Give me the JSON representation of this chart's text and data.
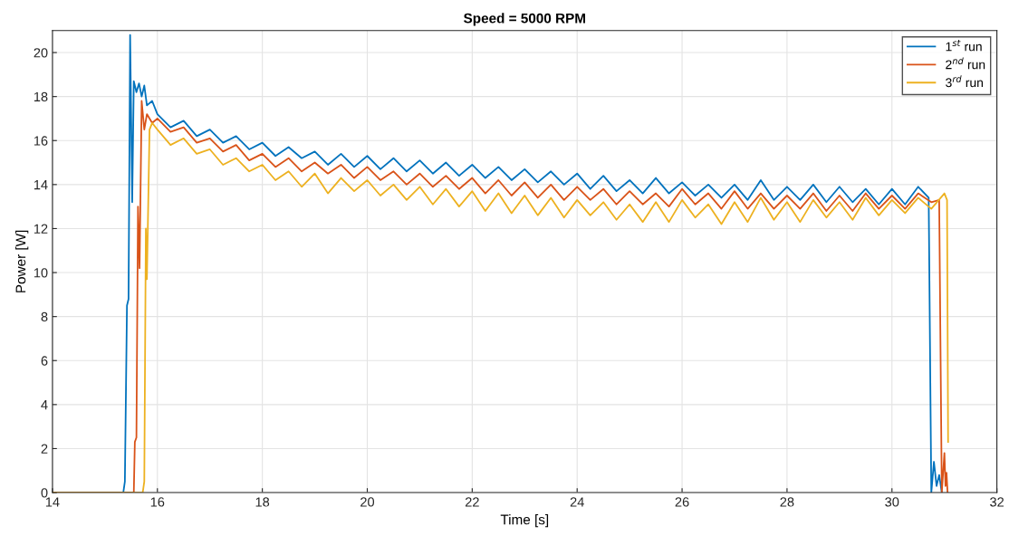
{
  "chart_data": {
    "type": "line",
    "title": "Speed = 5000 RPM",
    "xlabel": "Time [s]",
    "ylabel": "Power [W]",
    "xlim": [
      14,
      32
    ],
    "ylim": [
      0,
      21
    ],
    "xticks": [
      14,
      16,
      18,
      20,
      22,
      24,
      26,
      28,
      30,
      32
    ],
    "yticks": [
      0,
      2,
      4,
      6,
      8,
      10,
      12,
      14,
      16,
      18,
      20
    ],
    "grid": true,
    "legend": "top right",
    "marker": "none",
    "line_style": "solid",
    "series": [
      {
        "name": "1$^{st}$ run",
        "color": "#0072bd",
        "x": [
          14,
          15.35,
          15.38,
          15.42,
          15.45,
          15.48,
          15.52,
          15.55,
          15.6,
          15.65,
          15.7,
          15.75,
          15.8,
          15.9,
          16,
          16.25,
          16.5,
          16.75,
          17,
          17.25,
          17.5,
          17.75,
          18,
          18.25,
          18.5,
          18.75,
          19,
          19.25,
          19.5,
          19.75,
          20,
          20.25,
          20.5,
          20.75,
          21,
          21.25,
          21.5,
          21.75,
          22,
          22.25,
          22.5,
          22.75,
          23,
          23.25,
          23.5,
          23.75,
          24,
          24.25,
          24.5,
          24.75,
          25,
          25.25,
          25.5,
          25.75,
          26,
          26.25,
          26.5,
          26.75,
          27,
          27.25,
          27.5,
          27.75,
          28,
          28.25,
          28.5,
          28.75,
          29,
          29.25,
          29.5,
          29.75,
          30,
          30.25,
          30.5,
          30.7,
          30.75,
          30.8,
          30.85,
          30.9,
          30.95
        ],
        "values": [
          0,
          0,
          0.5,
          8.5,
          8.8,
          20.8,
          13.2,
          18.7,
          18.2,
          18.6,
          18.0,
          18.5,
          17.6,
          17.8,
          17.2,
          16.6,
          16.9,
          16.2,
          16.5,
          15.9,
          16.2,
          15.6,
          15.9,
          15.3,
          15.7,
          15.2,
          15.5,
          14.9,
          15.4,
          14.8,
          15.3,
          14.7,
          15.2,
          14.6,
          15.1,
          14.5,
          15.0,
          14.4,
          14.9,
          14.3,
          14.8,
          14.2,
          14.7,
          14.1,
          14.6,
          14.0,
          14.5,
          13.8,
          14.4,
          13.7,
          14.2,
          13.6,
          14.3,
          13.6,
          14.1,
          13.5,
          14.0,
          13.4,
          14.0,
          13.3,
          14.2,
          13.3,
          13.9,
          13.3,
          14.0,
          13.2,
          13.9,
          13.2,
          13.8,
          13.1,
          13.8,
          13.1,
          13.9,
          13.4,
          0,
          1.4,
          0.3,
          0.8,
          0
        ]
      },
      {
        "name": "2$^{nd}$ run",
        "color": "#d95319",
        "x": [
          14,
          15.55,
          15.57,
          15.6,
          15.63,
          15.66,
          15.7,
          15.75,
          15.8,
          15.9,
          16,
          16.25,
          16.5,
          16.75,
          17,
          17.25,
          17.5,
          17.75,
          18,
          18.25,
          18.5,
          18.75,
          19,
          19.25,
          19.5,
          19.75,
          20,
          20.25,
          20.5,
          20.75,
          21,
          21.25,
          21.5,
          21.75,
          22,
          22.25,
          22.5,
          22.75,
          23,
          23.25,
          23.5,
          23.75,
          24,
          24.25,
          24.5,
          24.75,
          25,
          25.25,
          25.5,
          25.75,
          26,
          26.25,
          26.5,
          26.75,
          27,
          27.25,
          27.5,
          27.75,
          28,
          28.25,
          28.5,
          28.75,
          29,
          29.25,
          29.5,
          29.75,
          30,
          30.25,
          30.5,
          30.75,
          30.9,
          30.95,
          31.0,
          31.02,
          31.04,
          31.06
        ],
        "values": [
          0,
          0,
          2.3,
          2.5,
          13.0,
          10.2,
          17.8,
          16.5,
          17.2,
          16.8,
          17.0,
          16.4,
          16.6,
          15.9,
          16.1,
          15.5,
          15.8,
          15.1,
          15.4,
          14.8,
          15.2,
          14.6,
          15.0,
          14.5,
          14.9,
          14.3,
          14.8,
          14.2,
          14.6,
          14.0,
          14.5,
          13.9,
          14.4,
          13.8,
          14.3,
          13.6,
          14.2,
          13.5,
          14.1,
          13.4,
          14.0,
          13.3,
          13.9,
          13.3,
          13.8,
          13.1,
          13.7,
          13.1,
          13.6,
          13.0,
          13.8,
          13.1,
          13.6,
          12.9,
          13.7,
          12.9,
          13.6,
          12.9,
          13.5,
          12.9,
          13.6,
          12.8,
          13.5,
          12.8,
          13.6,
          12.9,
          13.5,
          12.9,
          13.6,
          13.2,
          13.3,
          0,
          1.8,
          0.3,
          0.9,
          0
        ]
      },
      {
        "name": "3$^{rd}$ run",
        "color": "#edb120",
        "x": [
          14,
          15.72,
          15.75,
          15.78,
          15.8,
          15.85,
          15.9,
          16,
          16.25,
          16.5,
          16.75,
          17,
          17.25,
          17.5,
          17.75,
          18,
          18.25,
          18.5,
          18.75,
          19,
          19.25,
          19.5,
          19.75,
          20,
          20.25,
          20.5,
          20.75,
          21,
          21.25,
          21.5,
          21.75,
          22,
          22.25,
          22.5,
          22.75,
          23,
          23.25,
          23.5,
          23.75,
          24,
          24.25,
          24.5,
          24.75,
          25,
          25.25,
          25.5,
          25.75,
          26,
          26.25,
          26.5,
          26.75,
          27,
          27.25,
          27.5,
          27.75,
          28,
          28.25,
          28.5,
          28.75,
          29,
          29.25,
          29.5,
          29.75,
          30,
          30.25,
          30.5,
          30.75,
          31.0,
          31.05,
          31.07
        ],
        "values": [
          0,
          0,
          0.5,
          12.0,
          9.7,
          16.5,
          16.8,
          16.5,
          15.8,
          16.1,
          15.4,
          15.6,
          14.9,
          15.2,
          14.6,
          14.9,
          14.2,
          14.6,
          13.9,
          14.5,
          13.6,
          14.3,
          13.7,
          14.2,
          13.5,
          14.0,
          13.3,
          13.9,
          13.1,
          13.8,
          13.0,
          13.7,
          12.8,
          13.6,
          12.7,
          13.5,
          12.6,
          13.4,
          12.5,
          13.3,
          12.6,
          13.2,
          12.4,
          13.1,
          12.3,
          13.2,
          12.3,
          13.3,
          12.5,
          13.1,
          12.2,
          13.2,
          12.3,
          13.4,
          12.4,
          13.2,
          12.3,
          13.3,
          12.5,
          13.2,
          12.4,
          13.4,
          12.6,
          13.3,
          12.7,
          13.4,
          12.9,
          13.6,
          13.3,
          2.3
        ]
      }
    ]
  }
}
